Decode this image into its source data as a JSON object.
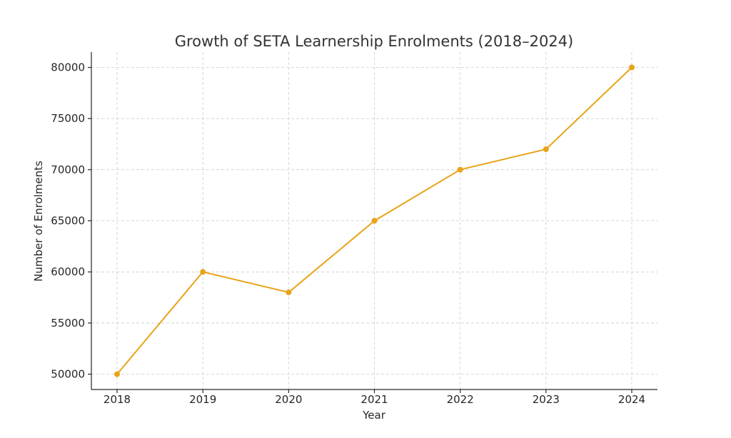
{
  "chart_data": {
    "type": "line",
    "title": "Growth of SETA Learnership Enrolments (2018–2024)",
    "xlabel": "Year",
    "ylabel": "Number of Enrolments",
    "x": [
      "2018",
      "2019",
      "2020",
      "2021",
      "2022",
      "2023",
      "2024"
    ],
    "series": [
      {
        "values": [
          50000,
          60000,
          58000,
          65000,
          70000,
          72000,
          80000
        ],
        "color": "#e8a317"
      }
    ],
    "yticks": [
      50000,
      55000,
      60000,
      65000,
      70000,
      75000,
      80000
    ],
    "ylim": [
      48500,
      81500
    ],
    "grid": true,
    "legend": "none"
  }
}
